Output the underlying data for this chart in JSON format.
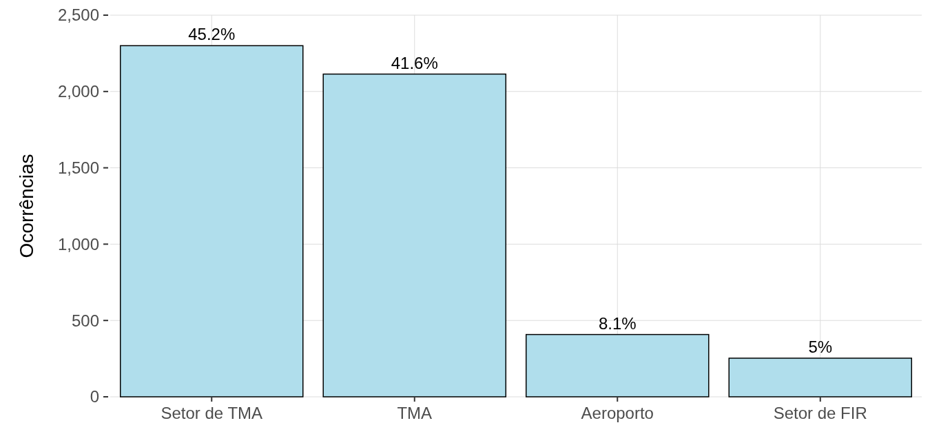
{
  "chart_data": {
    "type": "bar",
    "ylabel": "Ocorrências",
    "categories": [
      "Setor de TMA",
      "TMA",
      "Aeroporto",
      "Setor de FIR"
    ],
    "values": [
      2300,
      2114,
      408,
      253
    ],
    "annotations": [
      {
        "text": "45.2%",
        "x": "Setor de TMA",
        "y": 2300
      },
      {
        "text": "41.6%",
        "x": "TMA",
        "y": 2114
      },
      {
        "text": "8.1%",
        "x": "Aeroporto",
        "y": 408
      },
      {
        "text": "5%",
        "x": "Setor de FIR",
        "y": 253
      }
    ],
    "color": "#b0deec",
    "ylim": [
      0,
      2500
    ],
    "yticks": [
      {
        "value": 0,
        "label": "0"
      },
      {
        "value": 500,
        "label": "500"
      },
      {
        "value": 1000,
        "label": "1,000"
      },
      {
        "value": 1500,
        "label": "1,500"
      },
      {
        "value": 2000,
        "label": "2,000"
      },
      {
        "value": 2500,
        "label": "2,500"
      }
    ],
    "grid": true
  }
}
